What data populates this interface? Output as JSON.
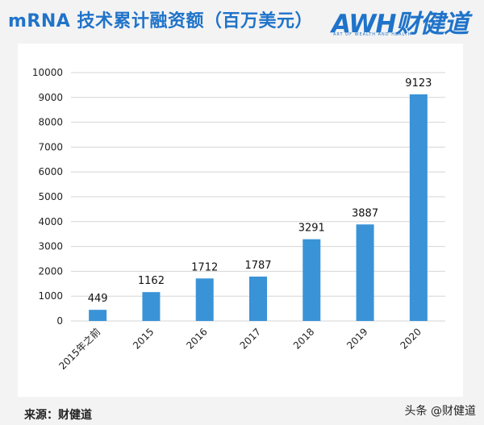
{
  "header": {
    "title": "mRNA 技术累计融资额（百万美元）",
    "logo_text": "AWH财健道",
    "logo_subtext": "ART OF WEALTH AND HEALTH"
  },
  "footer": {
    "source": "来源：财健道",
    "watermark": "头条 @财健道"
  },
  "colors": {
    "bar": "#3a93d6",
    "title": "#1f73c9",
    "grid": "#d6d6d6"
  },
  "chart_data": {
    "type": "bar",
    "categories": [
      "2015年之前",
      "2015",
      "2016",
      "2017",
      "2018",
      "2019",
      "2020"
    ],
    "values": [
      449,
      1162,
      1712,
      1787,
      3291,
      3887,
      9123
    ],
    "title": "mRNA 技术累计融资额（百万美元）",
    "xlabel": "",
    "ylabel": "",
    "ylim": [
      0,
      10000
    ],
    "yticks": [
      0,
      1000,
      2000,
      3000,
      4000,
      5000,
      6000,
      7000,
      8000,
      9000,
      10000
    ],
    "grid": true,
    "legend": "none"
  }
}
